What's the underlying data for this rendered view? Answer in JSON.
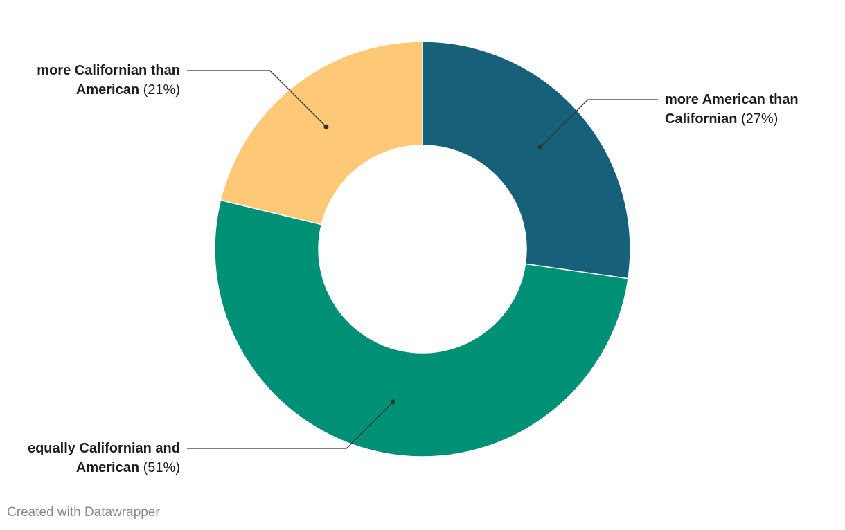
{
  "chart_data": {
    "type": "pie",
    "donut": true,
    "slices": [
      {
        "name": "more American than Californian",
        "value": 27,
        "color": "#17607a"
      },
      {
        "name": "equally Californian and American",
        "value": 51,
        "color": "#009075"
      },
      {
        "name": "more Californian than American",
        "value": 21,
        "color": "#fec977"
      }
    ],
    "labels": [
      {
        "line1": "more American than",
        "line2": "Californian",
        "pct": "(27%)"
      },
      {
        "line1": "equally Californian and",
        "line2": "American",
        "pct": "(51%)"
      },
      {
        "line1": "more Californian than",
        "line2": "American",
        "pct": "(21%)"
      }
    ],
    "title": "",
    "legend": "none"
  },
  "footer": {
    "credit": "Created with Datawrapper"
  }
}
